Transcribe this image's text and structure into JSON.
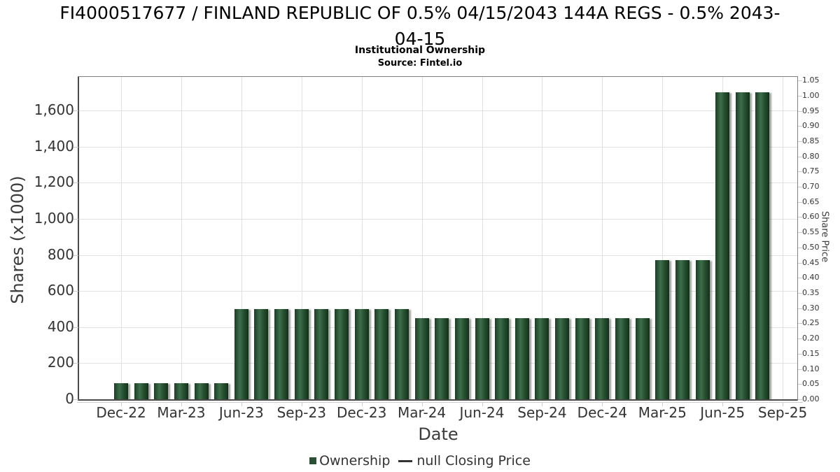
{
  "title": {
    "line1": "FI4000517677 / FINLAND REPUBLIC OF 0.5% 04/15/2043 144A REGS - 0.5% 2043-",
    "line2": "04-15",
    "full": "FI4000517677 / FINLAND REPUBLIC OF 0.5% 04/15/2043 144A REGS - 0.5% 2043-04-15"
  },
  "subtitle": "Institutional Ownership",
  "source": "Source: Fintel.io",
  "axes": {
    "left_title": "Shares (x1000)",
    "bottom_title": "Date",
    "right_title": "Share Price",
    "left_ticks": [
      "0",
      "200",
      "400",
      "600",
      "800",
      "1,000",
      "1,200",
      "1,400",
      "1,600"
    ],
    "x_ticks": [
      "Dec-22",
      "Mar-23",
      "Jun-23",
      "Sep-23",
      "Dec-23",
      "Mar-24",
      "Jun-24",
      "Sep-24",
      "Dec-24",
      "Mar-25",
      "Jun-25",
      "Sep-25"
    ],
    "right_ticks": [
      "0.00",
      "0.05",
      "0.10",
      "0.15",
      "0.20",
      "0.25",
      "0.30",
      "0.35",
      "0.40",
      "0.45",
      "0.50",
      "0.55",
      "0.60",
      "0.65",
      "0.70",
      "0.75",
      "0.80",
      "0.85",
      "0.90",
      "0.95",
      "1.00",
      "1.05"
    ]
  },
  "legend": {
    "ownership_label": "Ownership",
    "price_label": "null Closing Price"
  },
  "colors": {
    "bar_solid": "#2b5134",
    "bar_dark": "#16381f",
    "bar_light": "#3e6e4d",
    "grid": "#e1e1e1",
    "spine": "#7f7f7f",
    "spine_dark": "#4a4a4a",
    "tick": "#cccccc",
    "text": "#333333",
    "axis_title_text": "#3c3c3c"
  },
  "chart_data": {
    "type": "bar",
    "title": "FI4000517677 / FINLAND REPUBLIC OF 0.5% 04/15/2043 144A REGS - 0.5% 2043-04-15",
    "subtitle": "Institutional Ownership",
    "source": "Source: Fintel.io",
    "xlabel": "Date",
    "ylabel_left": "Shares (x1000)",
    "ylabel_right": "Share Price",
    "ylim_left": [
      0,
      1790
    ],
    "ylim_right": [
      0,
      1.05
    ],
    "grid": true,
    "legend_position": "bottom",
    "categories": [
      "Dec-22",
      "Jan-23",
      "Feb-23",
      "Mar-23",
      "Apr-23",
      "May-23",
      "Jun-23",
      "Jul-23",
      "Aug-23",
      "Sep-23",
      "Oct-23",
      "Nov-23",
      "Dec-23",
      "Jan-24",
      "Feb-24",
      "Mar-24",
      "Apr-24",
      "May-24",
      "Jun-24",
      "Jul-24",
      "Aug-24",
      "Sep-24",
      "Oct-24",
      "Nov-24",
      "Dec-24",
      "Jan-25",
      "Feb-25",
      "Mar-25",
      "Apr-25",
      "May-25",
      "Jun-25",
      "Jul-25",
      "Aug-25"
    ],
    "series": [
      {
        "name": "Ownership",
        "type": "bar",
        "axis": "left",
        "units": "shares x1000",
        "color": "#2b5134",
        "values": [
          90,
          90,
          90,
          90,
          90,
          90,
          500,
          500,
          500,
          500,
          500,
          500,
          500,
          500,
          500,
          450,
          450,
          450,
          450,
          450,
          450,
          450,
          450,
          450,
          450,
          450,
          450,
          770,
          770,
          770,
          1700,
          1700,
          1700
        ]
      },
      {
        "name": "null Closing Price",
        "type": "line",
        "axis": "right",
        "values": []
      }
    ]
  }
}
